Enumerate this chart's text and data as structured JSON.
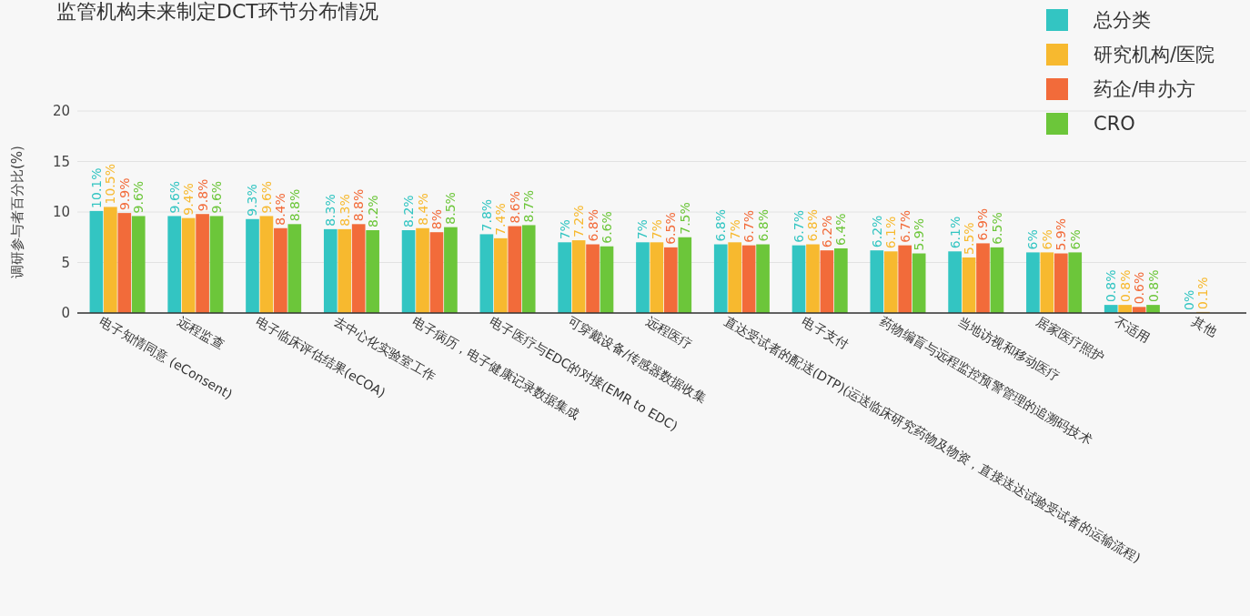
{
  "chart_data": {
    "type": "bar",
    "title": "监管机构未来制定DCT环节分布情况",
    "ylabel": "调研参与者百分比(%)",
    "categories": [
      "电子知情同意 (eConsent)",
      "远程监查",
      "电子临床评估结果(eCOA)",
      "去中心化实验室工作",
      "电子病历，电子健康记录数据集成",
      "电子医疗与EDC的对接(EMR to EDC)",
      "可穿戴设备/传感器数据收集",
      "远程医疗",
      "直达受试者的配送(DTP)(运送临床研究药物及物资，直接送达试验受试者的运输流程)",
      "电子支付",
      "药物编盲与远程监控预警管理的追溯码技术",
      "当地访视和移动医疗",
      "居家医疗照护",
      "不适用",
      "其他"
    ],
    "series": [
      {
        "name": "总分类",
        "color": "#33c5c2",
        "values": [
          10.1,
          9.6,
          9.3,
          8.3,
          8.2,
          7.8,
          7,
          7,
          6.8,
          6.7,
          6.2,
          6.1,
          6,
          0.8,
          0
        ],
        "value_labels": [
          "10.1%",
          "9.6%",
          "9.3%",
          "8.3%",
          "8.2%",
          "7.8%",
          "7%",
          "7%",
          "6.8%",
          "6.7%",
          "6.2%",
          "6.1%",
          "6%",
          "0.8%",
          "0%"
        ]
      },
      {
        "name": "研究机构/医院",
        "color": "#f7b92f",
        "values": [
          10.5,
          9.4,
          9.6,
          8.3,
          8.4,
          7.4,
          7.2,
          7,
          7,
          6.8,
          6.1,
          5.5,
          6,
          0.8,
          0.1
        ],
        "value_labels": [
          "10.5%",
          "9.4%",
          "9.6%",
          "8.3%",
          "8.4%",
          "7.4%",
          "7.2%",
          "7%",
          "7%",
          "6.8%",
          "6.1%",
          "5.5%",
          "6%",
          "0.8%",
          "0.1%"
        ]
      },
      {
        "name": "药企/申办方",
        "color": "#f26b3a",
        "values": [
          9.9,
          9.8,
          8.4,
          8.8,
          8,
          8.6,
          6.8,
          6.5,
          6.7,
          6.2,
          6.7,
          6.9,
          5.9,
          0.6,
          null
        ],
        "value_labels": [
          "9.9%",
          "9.8%",
          "8.4%",
          "8.8%",
          "8%",
          "8.6%",
          "6.8%",
          "6.5%",
          "6.7%",
          "6.2%",
          "6.7%",
          "6.9%",
          "5.9%",
          "0.6%",
          null
        ]
      },
      {
        "name": "CRO",
        "color": "#6cc63a",
        "values": [
          9.6,
          9.6,
          8.8,
          8.2,
          8.5,
          8.7,
          6.6,
          7.5,
          6.8,
          6.4,
          5.9,
          6.5,
          6,
          0.8,
          null
        ],
        "value_labels": [
          "9.6%",
          "9.6%",
          "8.8%",
          "8.2%",
          "8.5%",
          "8.7%",
          "6.6%",
          "7.5%",
          "6.8%",
          "6.4%",
          "5.9%",
          "6.5%",
          "6%",
          "0.8%",
          null
        ]
      }
    ],
    "ylim": [
      0,
      20
    ],
    "yticks": [
      0,
      5,
      10,
      15,
      20
    ],
    "grid": "y",
    "legend": "top right"
  }
}
